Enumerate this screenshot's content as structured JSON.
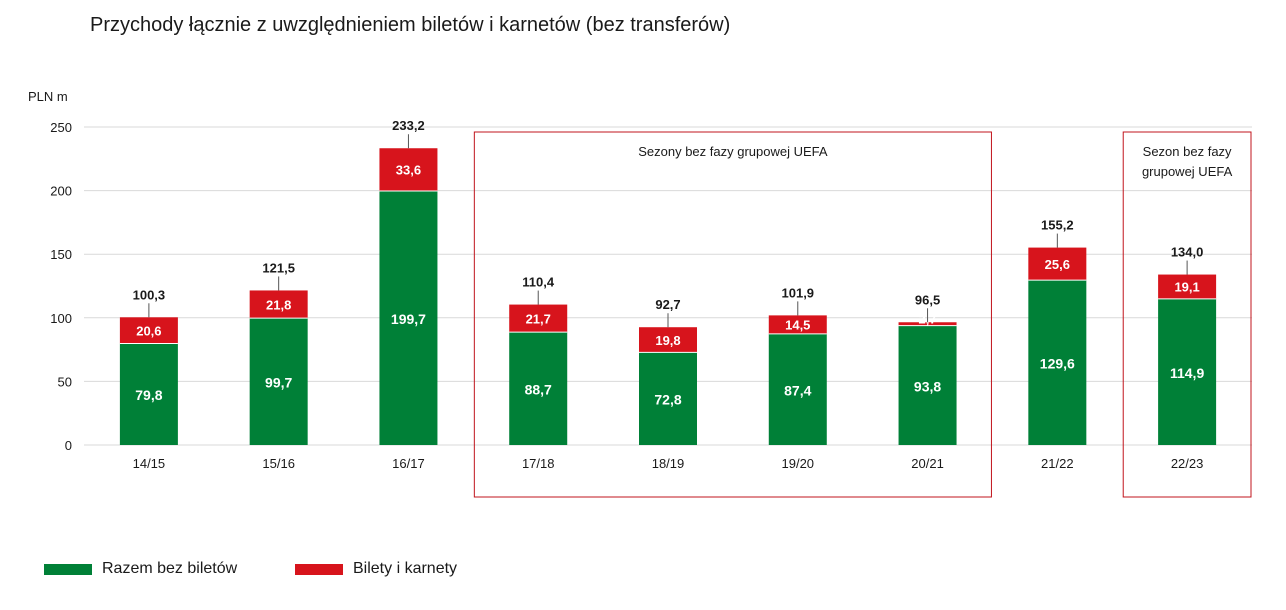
{
  "title": "Przychody łącznie z uwzględnieniem biletów i karnetów (bez transferów)",
  "chart_data": {
    "type": "bar",
    "stacked": true,
    "title": "Przychody łącznie z uwzględnieniem biletów i karnetów (bez transferów)",
    "ylabel": "PLN m",
    "ylim": [
      0,
      250
    ],
    "yticks": [
      0,
      50,
      100,
      150,
      200,
      250
    ],
    "grid": true,
    "categories": [
      "14/15",
      "15/16",
      "16/17",
      "17/18",
      "18/19",
      "19/20",
      "20/21",
      "21/22",
      "22/23"
    ],
    "series": [
      {
        "name": "Razem bez biletów",
        "color": "#008037",
        "values": [
          79.8,
          99.7,
          199.7,
          88.7,
          72.8,
          87.4,
          93.8,
          129.6,
          114.9
        ],
        "labels": [
          "79,8",
          "99,7",
          "199,7",
          "88,7",
          "72,8",
          "87,4",
          "93,8",
          "129,6",
          "114,9"
        ]
      },
      {
        "name": "Bilety i karnety",
        "color": "#d7141c",
        "values": [
          20.6,
          21.8,
          33.6,
          21.7,
          19.8,
          14.5,
          2.7,
          25.6,
          19.1
        ],
        "labels": [
          "20,6",
          "21,8",
          "33,6",
          "21,7",
          "19,8",
          "14,5",
          "2,7",
          "25,6",
          "19,1"
        ]
      }
    ],
    "totals": [
      100.3,
      121.5,
      233.2,
      110.4,
      92.7,
      101.9,
      96.5,
      155.2,
      134.0
    ],
    "total_labels": [
      "100,3",
      "121,5",
      "233,2",
      "110,4",
      "92,7",
      "101,9",
      "96,5",
      "155,2",
      "134,0"
    ],
    "annotations": [
      {
        "text_lines": [
          "Sezony bez fazy grupowej UEFA"
        ],
        "from": "17/18",
        "to": "20/21"
      },
      {
        "text_lines": [
          "Sezon bez fazy",
          "grupowej UEFA"
        ],
        "from": "22/23",
        "to": "22/23"
      }
    ],
    "legend_position": "bottom-left"
  },
  "legend": {
    "green_label": "Razem bez biletów",
    "red_label": "Bilety i karnety",
    "green_color": "#008037",
    "red_color": "#d7141c"
  }
}
